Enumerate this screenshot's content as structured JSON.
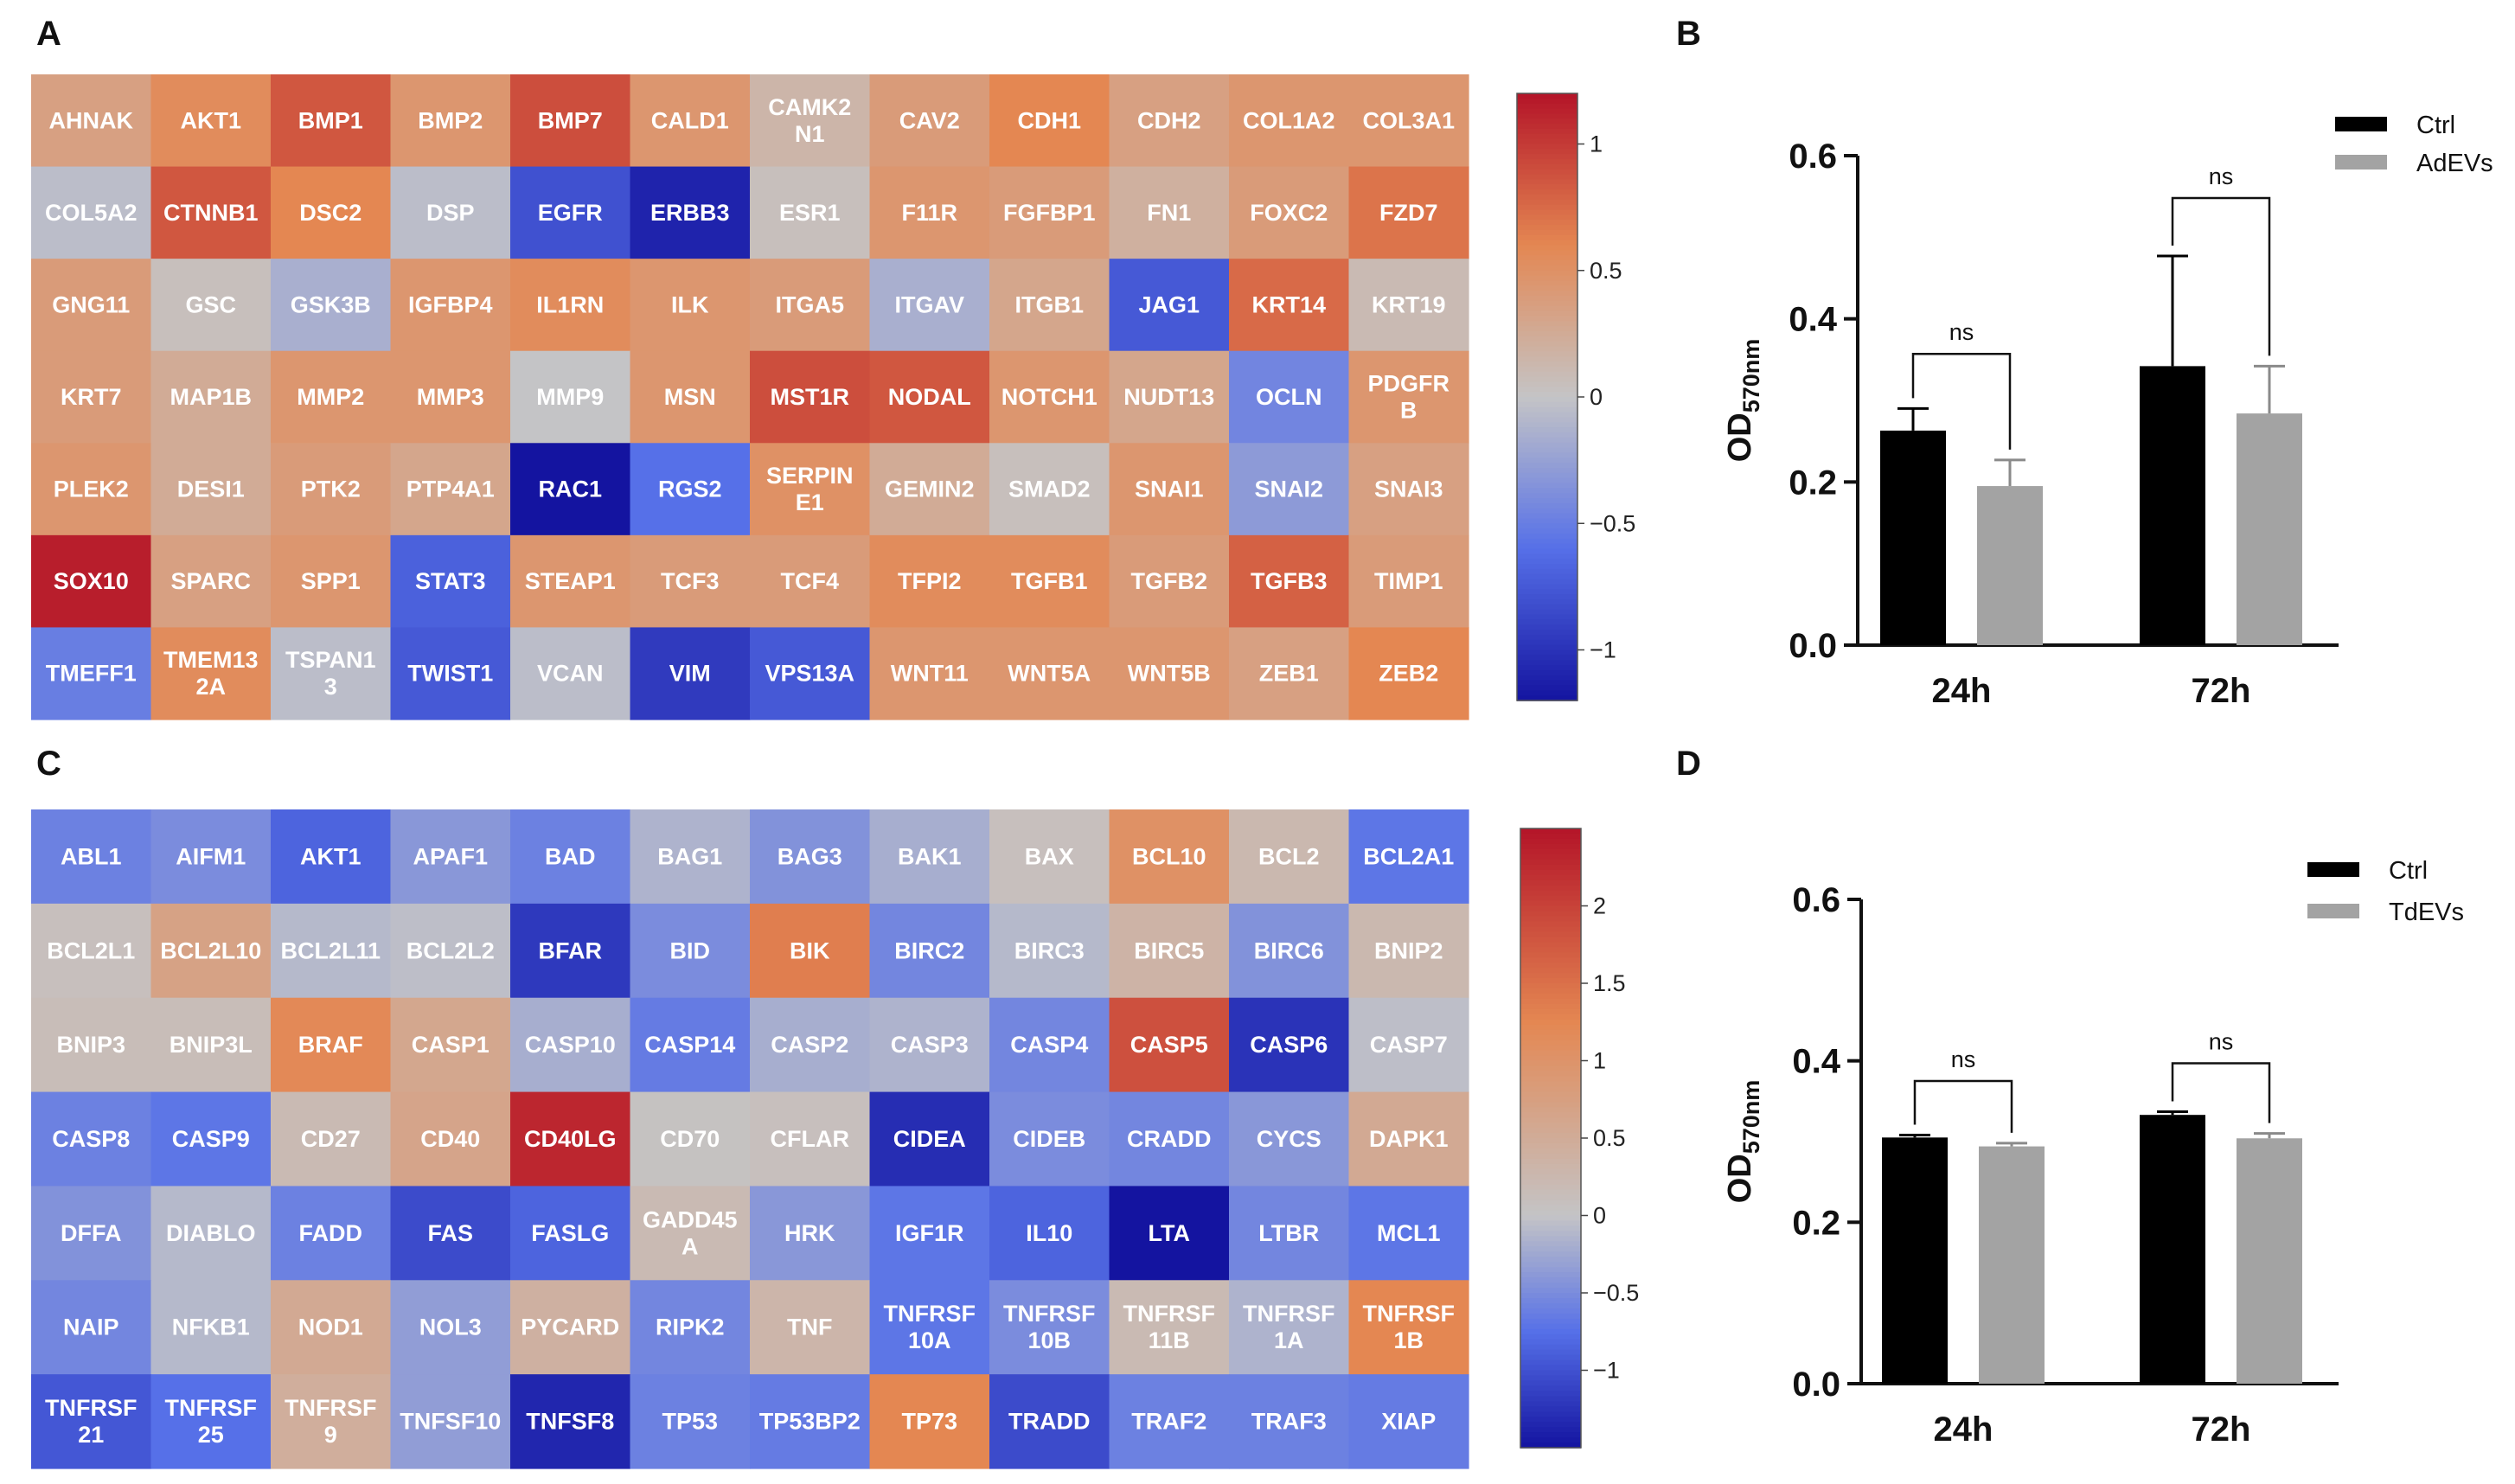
{
  "panels": {
    "a": "A",
    "b": "B",
    "c": "C",
    "d": "D"
  },
  "chart_data": [
    {
      "id": "A",
      "type": "heatmap",
      "title": "",
      "columns": 12,
      "color_range": [
        -1.2,
        1.2
      ],
      "colorbar_ticks": [
        1,
        0.5,
        0,
        -0.5,
        -1
      ],
      "colorbar_labels": [
        "1",
        "0.5",
        "0",
        "−0.5",
        "−1"
      ],
      "cells": [
        {
          "label": "AHNAK",
          "value": 0.35
        },
        {
          "label": "AKT1",
          "value": 0.55
        },
        {
          "label": "BMP1",
          "value": 0.85
        },
        {
          "label": "BMP2",
          "value": 0.45
        },
        {
          "label": "BMP7",
          "value": 0.9
        },
        {
          "label": "CALD1",
          "value": 0.45
        },
        {
          "label": "CAMK2\nN1",
          "value": 0.15
        },
        {
          "label": "CAV2",
          "value": 0.4
        },
        {
          "label": "CDH1",
          "value": 0.6
        },
        {
          "label": "CDH2",
          "value": 0.35
        },
        {
          "label": "COL1A2",
          "value": 0.45
        },
        {
          "label": "COL3A1",
          "value": 0.45
        },
        {
          "label": "COL5A2",
          "value": -0.05
        },
        {
          "label": "CTNNB1",
          "value": 0.85
        },
        {
          "label": "DSC2",
          "value": 0.6
        },
        {
          "label": "DSP",
          "value": -0.05
        },
        {
          "label": "EGFR",
          "value": -0.8
        },
        {
          "label": "ERBB3",
          "value": -1.1
        },
        {
          "label": "ESR1",
          "value": 0.05
        },
        {
          "label": "F11R",
          "value": 0.45
        },
        {
          "label": "FGFBP1",
          "value": 0.4
        },
        {
          "label": "FN1",
          "value": 0.2
        },
        {
          "label": "FOXC2",
          "value": 0.4
        },
        {
          "label": "FZD7",
          "value": 0.7
        },
        {
          "label": "GNG11",
          "value": 0.4
        },
        {
          "label": "GSC",
          "value": 0.05
        },
        {
          "label": "GSK3B",
          "value": -0.15
        },
        {
          "label": "IGFBP4",
          "value": 0.45
        },
        {
          "label": "IL1RN",
          "value": 0.55
        },
        {
          "label": "ILK",
          "value": 0.45
        },
        {
          "label": "ITGA5",
          "value": 0.4
        },
        {
          "label": "ITGAV",
          "value": -0.15
        },
        {
          "label": "ITGB1",
          "value": 0.3
        },
        {
          "label": "JAG1",
          "value": -0.75
        },
        {
          "label": "KRT14",
          "value": 0.75
        },
        {
          "label": "KRT19",
          "value": 0.1
        },
        {
          "label": "KRT7",
          "value": 0.4
        },
        {
          "label": "MAP1B",
          "value": 0.25
        },
        {
          "label": "MMP2",
          "value": 0.45
        },
        {
          "label": "MMP3",
          "value": 0.45
        },
        {
          "label": "MMP9",
          "value": 0.0
        },
        {
          "label": "MSN",
          "value": 0.45
        },
        {
          "label": "MST1R",
          "value": 0.9
        },
        {
          "label": "NODAL",
          "value": 0.85
        },
        {
          "label": "NOTCH1",
          "value": 0.45
        },
        {
          "label": "NUDT13",
          "value": 0.3
        },
        {
          "label": "OCLN",
          "value": -0.45
        },
        {
          "label": "PDGFR\nB",
          "value": 0.45
        },
        {
          "label": "PLEK2",
          "value": 0.45
        },
        {
          "label": "DESI1",
          "value": 0.25
        },
        {
          "label": "PTK2",
          "value": 0.4
        },
        {
          "label": "PTP4A1",
          "value": 0.3
        },
        {
          "label": "RAC1",
          "value": -1.2
        },
        {
          "label": "RGS2",
          "value": -0.6
        },
        {
          "label": "SERPIN\nE1",
          "value": 0.5
        },
        {
          "label": "GEMIN2",
          "value": 0.25
        },
        {
          "label": "SMAD2",
          "value": 0.05
        },
        {
          "label": "SNAI1",
          "value": 0.45
        },
        {
          "label": "SNAI2",
          "value": -0.3
        },
        {
          "label": "SNAI3",
          "value": 0.35
        },
        {
          "label": "SOX10",
          "value": 1.15
        },
        {
          "label": "SPARC",
          "value": 0.35
        },
        {
          "label": "SPP1",
          "value": 0.45
        },
        {
          "label": "STAT3",
          "value": -0.7
        },
        {
          "label": "STEAP1",
          "value": 0.45
        },
        {
          "label": "TCF3",
          "value": 0.4
        },
        {
          "label": "TCF4",
          "value": 0.4
        },
        {
          "label": "TFPI2",
          "value": 0.55
        },
        {
          "label": "TGFB1",
          "value": 0.55
        },
        {
          "label": "TGFB2",
          "value": 0.4
        },
        {
          "label": "TGFB3",
          "value": 0.8
        },
        {
          "label": "TIMP1",
          "value": 0.4
        },
        {
          "label": "TMEFF1",
          "value": -0.5
        },
        {
          "label": "TMEM13\n2A",
          "value": 0.55
        },
        {
          "label": "TSPAN1\n3",
          "value": -0.05
        },
        {
          "label": "TWIST1",
          "value": -0.75
        },
        {
          "label": "VCAN",
          "value": -0.05
        },
        {
          "label": "VIM",
          "value": -0.95
        },
        {
          "label": "VPS13A",
          "value": -0.75
        },
        {
          "label": "WNT11",
          "value": 0.45
        },
        {
          "label": "WNT5A",
          "value": 0.45
        },
        {
          "label": "WNT5B",
          "value": 0.45
        },
        {
          "label": "ZEB1",
          "value": 0.35
        },
        {
          "label": "ZEB2",
          "value": 0.6
        }
      ]
    },
    {
      "id": "B",
      "type": "bar",
      "title": "",
      "categories": [
        "24h",
        "72h"
      ],
      "series": [
        {
          "name": "Ctrl",
          "values": [
            0.263,
            0.342
          ],
          "errors": [
            0.027,
            0.135
          ],
          "color": "#000000"
        },
        {
          "name": "AdEVs",
          "values": [
            0.195,
            0.284
          ],
          "errors": [
            0.032,
            0.058
          ],
          "color": "#a3a3a3"
        }
      ],
      "ylim": [
        0,
        0.6
      ],
      "yticks": [
        0.0,
        0.2,
        0.4,
        0.6
      ],
      "ytick_labels": [
        "0.0",
        "0.2",
        "0.4",
        "0.6"
      ],
      "ylabel": "OD",
      "ylabel_sub": "570nm",
      "xlabel": "",
      "significance": [
        {
          "category": "24h",
          "label": "ns",
          "bracket_y": 0.357
        },
        {
          "category": "72h",
          "label": "ns",
          "bracket_y": 0.548
        }
      ],
      "legend_position": "top-right"
    },
    {
      "id": "C",
      "type": "heatmap",
      "title": "",
      "columns": 12,
      "color_range": [
        -1.5,
        2.5
      ],
      "colorbar_ticks": [
        2,
        1.5,
        1,
        0.5,
        0,
        -0.5,
        -1
      ],
      "colorbar_labels": [
        "2",
        "1.5",
        "1",
        "0.5",
        "0",
        "−0.5",
        "−1"
      ],
      "cells": [
        {
          "label": "ABL1",
          "value": -0.6
        },
        {
          "label": "AIFM1",
          "value": -0.5
        },
        {
          "label": "AKT1",
          "value": -0.85
        },
        {
          "label": "APAF1",
          "value": -0.4
        },
        {
          "label": "BAD",
          "value": -0.6
        },
        {
          "label": "BAG1",
          "value": -0.15
        },
        {
          "label": "BAG3",
          "value": -0.45
        },
        {
          "label": "BAK1",
          "value": -0.2
        },
        {
          "label": "BAX",
          "value": 0.1
        },
        {
          "label": "BCL10",
          "value": 1.05
        },
        {
          "label": "BCL2",
          "value": 0.25
        },
        {
          "label": "BCL2A1",
          "value": -0.7
        },
        {
          "label": "BCL2L1",
          "value": 0.1
        },
        {
          "label": "BCL2L10",
          "value": 0.7
        },
        {
          "label": "BCL2L11",
          "value": -0.1
        },
        {
          "label": "BCL2L2",
          "value": -0.05
        },
        {
          "label": "BFAR",
          "value": -1.2
        },
        {
          "label": "BID",
          "value": -0.5
        },
        {
          "label": "BIK",
          "value": 1.35
        },
        {
          "label": "BIRC2",
          "value": -0.55
        },
        {
          "label": "BIRC3",
          "value": -0.1
        },
        {
          "label": "BIRC5",
          "value": 0.35
        },
        {
          "label": "BIRC6",
          "value": -0.45
        },
        {
          "label": "BNIP2",
          "value": 0.25
        },
        {
          "label": "BNIP3",
          "value": 0.15
        },
        {
          "label": "BNIP3L",
          "value": 0.15
        },
        {
          "label": "BRAF",
          "value": 1.2
        },
        {
          "label": "CASP1",
          "value": 0.6
        },
        {
          "label": "CASP10",
          "value": -0.2
        },
        {
          "label": "CASP14",
          "value": -0.65
        },
        {
          "label": "CASP2",
          "value": -0.2
        },
        {
          "label": "CASP3",
          "value": -0.15
        },
        {
          "label": "CASP4",
          "value": -0.55
        },
        {
          "label": "CASP5",
          "value": 1.85
        },
        {
          "label": "CASP6",
          "value": -1.25
        },
        {
          "label": "CASP7",
          "value": -0.05
        },
        {
          "label": "CASP8",
          "value": -0.6
        },
        {
          "label": "CASP9",
          "value": -0.7
        },
        {
          "label": "CD27",
          "value": 0.2
        },
        {
          "label": "CD40",
          "value": 0.65
        },
        {
          "label": "CD40LG",
          "value": 2.3
        },
        {
          "label": "CD70",
          "value": 0.05
        },
        {
          "label": "CFLAR",
          "value": 0.1
        },
        {
          "label": "CIDEA",
          "value": -1.3
        },
        {
          "label": "CIDEB",
          "value": -0.5
        },
        {
          "label": "CRADD",
          "value": -0.55
        },
        {
          "label": "CYCS",
          "value": -0.4
        },
        {
          "label": "DAPK1",
          "value": 0.55
        },
        {
          "label": "DFFA",
          "value": -0.45
        },
        {
          "label": "DIABLO",
          "value": -0.1
        },
        {
          "label": "FADD",
          "value": -0.6
        },
        {
          "label": "FAS",
          "value": -1.05
        },
        {
          "label": "FASLG",
          "value": -0.85
        },
        {
          "label": "GADD45\nA",
          "value": 0.2
        },
        {
          "label": "HRK",
          "value": -0.4
        },
        {
          "label": "IGF1R",
          "value": -0.7
        },
        {
          "label": "IL10",
          "value": -0.85
        },
        {
          "label": "LTA",
          "value": -1.5
        },
        {
          "label": "LTBR",
          "value": -0.55
        },
        {
          "label": "MCL1",
          "value": -0.7
        },
        {
          "label": "NAIP",
          "value": -0.55
        },
        {
          "label": "NFKB1",
          "value": -0.1
        },
        {
          "label": "NOD1",
          "value": 0.55
        },
        {
          "label": "NOL3",
          "value": -0.35
        },
        {
          "label": "PYCARD",
          "value": 0.4
        },
        {
          "label": "RIPK2",
          "value": -0.55
        },
        {
          "label": "TNF",
          "value": 0.3
        },
        {
          "label": "TNFRSF\n10A",
          "value": -0.7
        },
        {
          "label": "TNFRSF\n10B",
          "value": -0.5
        },
        {
          "label": "TNFRSF\n11B",
          "value": 0.2
        },
        {
          "label": "TNFRSF\n1A",
          "value": -0.15
        },
        {
          "label": "TNFRSF\n1B",
          "value": 1.25
        },
        {
          "label": "TNFRSF\n21",
          "value": -0.95
        },
        {
          "label": "TNFRSF\n25",
          "value": -0.75
        },
        {
          "label": "TNFRSF\n9",
          "value": 0.45
        },
        {
          "label": "TNFSF10",
          "value": -0.35
        },
        {
          "label": "TNFSF8",
          "value": -1.35
        },
        {
          "label": "TP53",
          "value": -0.6
        },
        {
          "label": "TP53BP2",
          "value": -0.65
        },
        {
          "label": "TP73",
          "value": 1.25
        },
        {
          "label": "TRADD",
          "value": -1.05
        },
        {
          "label": "TRAF2",
          "value": -0.6
        },
        {
          "label": "TRAF3",
          "value": -0.6
        },
        {
          "label": "XIAP",
          "value": -0.65
        }
      ]
    },
    {
      "id": "D",
      "type": "bar",
      "title": "",
      "categories": [
        "24h",
        "72h"
      ],
      "series": [
        {
          "name": "Ctrl",
          "values": [
            0.305,
            0.333
          ],
          "errors": [
            0.003,
            0.004
          ],
          "color": "#000000"
        },
        {
          "name": "TdEVs",
          "values": [
            0.294,
            0.304
          ],
          "errors": [
            0.004,
            0.006
          ],
          "color": "#a3a3a3"
        }
      ],
      "ylim": [
        0,
        0.6
      ],
      "yticks": [
        0.0,
        0.2,
        0.4,
        0.6
      ],
      "ytick_labels": [
        "0.0",
        "0.2",
        "0.4",
        "0.6"
      ],
      "ylabel": "OD",
      "ylabel_sub": "570nm",
      "xlabel": "",
      "significance": [
        {
          "category": "24h",
          "label": "ns",
          "bracket_y": 0.375
        },
        {
          "category": "72h",
          "label": "ns",
          "bracket_y": 0.397
        }
      ],
      "legend_position": "top-right"
    }
  ]
}
